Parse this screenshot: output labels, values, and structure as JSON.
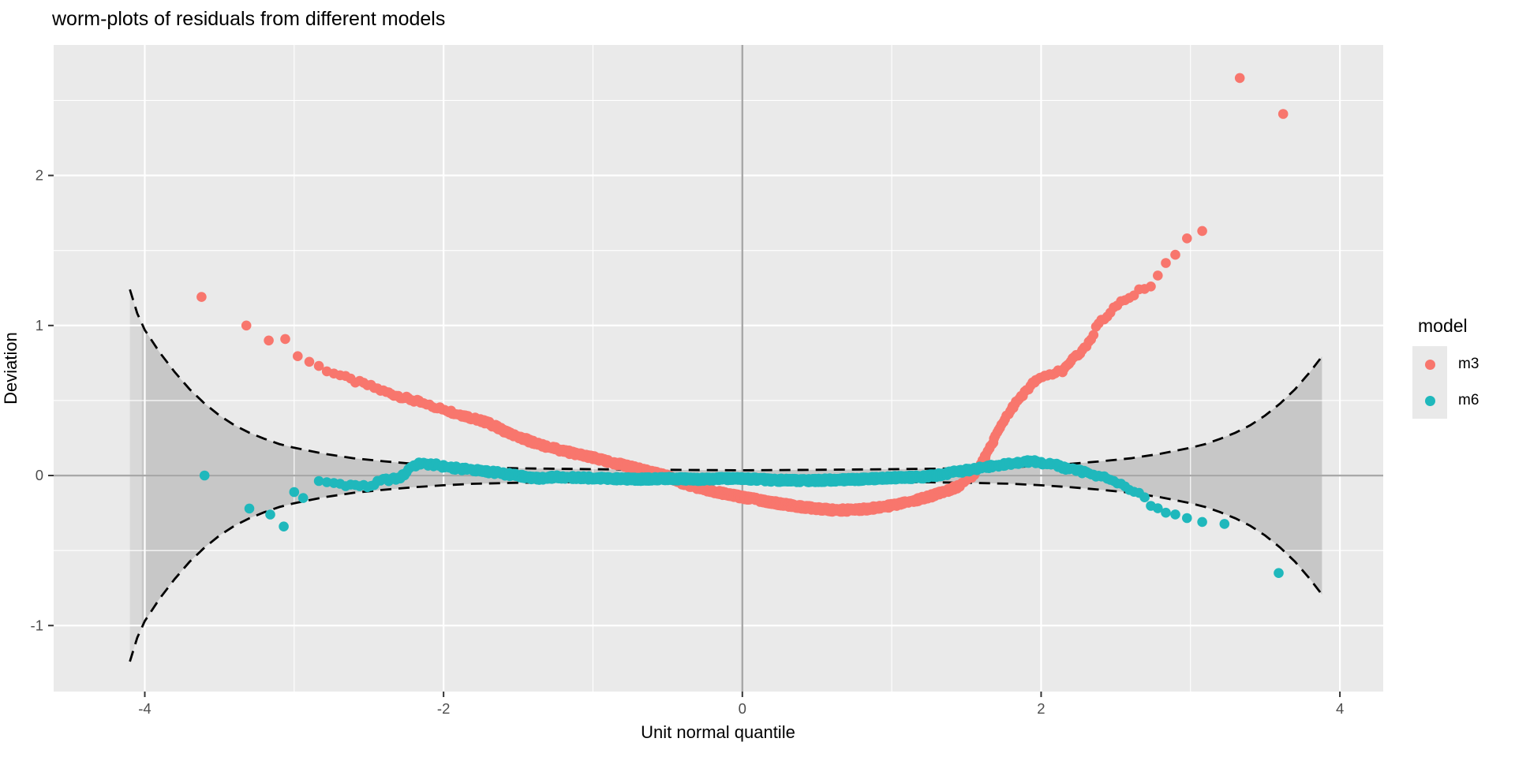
{
  "page": {
    "background": "#FFFFFF"
  },
  "chart_data": {
    "type": "scatter",
    "title": "worm-plots of residuals from different models",
    "xlabel": "Unit normal quantile",
    "ylabel": "Deviation",
    "x_range": [
      -4.61,
      4.29
    ],
    "y_range": [
      -1.44,
      2.87
    ],
    "x_ticks": [
      -4,
      -2,
      0,
      2,
      4
    ],
    "y_ticks": [
      -1,
      0,
      1,
      2
    ],
    "x_minor_ticks": [
      -3,
      -1,
      1,
      3
    ],
    "y_minor_ticks": [
      -0.5,
      0.5,
      1.5,
      2.5
    ],
    "panel_color": "#EAEAEA",
    "grid_major_color": "#FFFFFF",
    "grid_minor_color": "#FFFFFF",
    "reference_line_color": "#A8A8A8",
    "tick_label_color": "#4D4D4D",
    "confidence_band": {
      "style": "dashed",
      "line_color": "#000000",
      "fill": "rgba(0,0,0,0.075)",
      "dash_q_range": [
        -4.1,
        3.88
      ],
      "segments": [
        {
          "q_min": -4.1,
          "q_max": 3.88
        },
        {
          "q_min": -4.02,
          "q_max": 3.88
        }
      ],
      "upper": [
        [
          -4.1,
          1.24
        ],
        [
          -4.05,
          1.08
        ],
        [
          -4.0,
          0.97
        ],
        [
          -3.9,
          0.82
        ],
        [
          -3.8,
          0.69
        ],
        [
          -3.7,
          0.575
        ],
        [
          -3.6,
          0.48
        ],
        [
          -3.5,
          0.4
        ],
        [
          -3.4,
          0.335
        ],
        [
          -3.3,
          0.285
        ],
        [
          -3.2,
          0.245
        ],
        [
          -3.1,
          0.21
        ],
        [
          -3.0,
          0.185
        ],
        [
          -2.8,
          0.145
        ],
        [
          -2.6,
          0.115
        ],
        [
          -2.4,
          0.095
        ],
        [
          -2.2,
          0.078
        ],
        [
          -2.0,
          0.065
        ],
        [
          -1.8,
          0.055
        ],
        [
          -1.5,
          0.048
        ],
        [
          -1.0,
          0.042
        ],
        [
          -0.5,
          0.038
        ],
        [
          0,
          0.035
        ],
        [
          0.5,
          0.038
        ],
        [
          1.0,
          0.042
        ],
        [
          1.5,
          0.048
        ],
        [
          1.8,
          0.055
        ],
        [
          2.0,
          0.065
        ],
        [
          2.2,
          0.078
        ],
        [
          2.4,
          0.095
        ],
        [
          2.6,
          0.115
        ],
        [
          2.8,
          0.145
        ],
        [
          3.0,
          0.185
        ],
        [
          3.1,
          0.21
        ],
        [
          3.2,
          0.245
        ],
        [
          3.3,
          0.285
        ],
        [
          3.4,
          0.335
        ],
        [
          3.5,
          0.4
        ],
        [
          3.6,
          0.48
        ],
        [
          3.7,
          0.575
        ],
        [
          3.8,
          0.69
        ],
        [
          3.9,
          0.82
        ],
        [
          4.0,
          0.97
        ],
        [
          4.05,
          1.08
        ],
        [
          4.1,
          1.24
        ]
      ]
    },
    "legend": {
      "title": "model",
      "position": "right",
      "entries": [
        {
          "label": "m3",
          "color": "#F8766D"
        },
        {
          "label": "m6",
          "color": "#1FB8BC"
        }
      ]
    },
    "series": [
      {
        "name": "m3",
        "color": "#F8766D",
        "point_radius": 6.3,
        "n_points_est": 2400,
        "dense_q_range": [
          -2.98,
          3.19
        ],
        "curve": [
          [
            -2.98,
            0.8
          ],
          [
            -2.9,
            0.76
          ],
          [
            -2.8,
            0.71
          ],
          [
            -2.7,
            0.67
          ],
          [
            -2.6,
            0.63
          ],
          [
            -2.5,
            0.6
          ],
          [
            -2.4,
            0.56
          ],
          [
            -2.3,
            0.53
          ],
          [
            -2.2,
            0.5
          ],
          [
            -2.1,
            0.47
          ],
          [
            -2.0,
            0.44
          ],
          [
            -1.9,
            0.41
          ],
          [
            -1.8,
            0.38
          ],
          [
            -1.7,
            0.35
          ],
          [
            -1.6,
            0.3
          ],
          [
            -1.5,
            0.26
          ],
          [
            -1.4,
            0.22
          ],
          [
            -1.3,
            0.19
          ],
          [
            -1.2,
            0.165
          ],
          [
            -1.1,
            0.14
          ],
          [
            -1.0,
            0.12
          ],
          [
            -0.9,
            0.095
          ],
          [
            -0.8,
            0.07
          ],
          [
            -0.7,
            0.045
          ],
          [
            -0.6,
            0.02
          ],
          [
            -0.5,
            -0.005
          ],
          [
            -0.4,
            -0.05
          ],
          [
            -0.3,
            -0.08
          ],
          [
            -0.2,
            -0.105
          ],
          [
            -0.1,
            -0.125
          ],
          [
            0,
            -0.145
          ],
          [
            0.1,
            -0.16
          ],
          [
            0.2,
            -0.18
          ],
          [
            0.3,
            -0.195
          ],
          [
            0.4,
            -0.21
          ],
          [
            0.5,
            -0.22
          ],
          [
            0.6,
            -0.23
          ],
          [
            0.7,
            -0.23
          ],
          [
            0.8,
            -0.225
          ],
          [
            0.9,
            -0.215
          ],
          [
            1.0,
            -0.2
          ],
          [
            1.1,
            -0.18
          ],
          [
            1.2,
            -0.155
          ],
          [
            1.3,
            -0.125
          ],
          [
            1.4,
            -0.09
          ],
          [
            1.45,
            -0.07
          ],
          [
            1.5,
            -0.04
          ],
          [
            1.55,
            0.01
          ],
          [
            1.6,
            0.08
          ],
          [
            1.65,
            0.17
          ],
          [
            1.7,
            0.27
          ],
          [
            1.75,
            0.36
          ],
          [
            1.8,
            0.44
          ],
          [
            1.85,
            0.51
          ],
          [
            1.9,
            0.56
          ],
          [
            1.95,
            0.62
          ],
          [
            2.0,
            0.65
          ],
          [
            2.05,
            0.67
          ],
          [
            2.1,
            0.69
          ],
          [
            2.15,
            0.7
          ],
          [
            2.2,
            0.76
          ],
          [
            2.25,
            0.81
          ],
          [
            2.3,
            0.86
          ],
          [
            2.34,
            0.91
          ],
          [
            2.37,
            1.0
          ],
          [
            2.41,
            1.04
          ],
          [
            2.45,
            1.07
          ],
          [
            2.5,
            1.13
          ],
          [
            2.55,
            1.16
          ],
          [
            2.6,
            1.19
          ],
          [
            2.65,
            1.23
          ],
          [
            2.7,
            1.24
          ],
          [
            2.76,
            1.29
          ],
          [
            2.81,
            1.4
          ],
          [
            2.86,
            1.43
          ],
          [
            2.92,
            1.5
          ],
          [
            2.97,
            1.57
          ],
          [
            3.02,
            1.63
          ],
          [
            3.06,
            1.65
          ],
          [
            3.1,
            1.61
          ],
          [
            3.15,
            1.55
          ],
          [
            3.19,
            1.52
          ]
        ],
        "outliers": [
          [
            -3.62,
            1.19
          ],
          [
            -3.32,
            1.0
          ],
          [
            -3.17,
            0.9
          ],
          [
            -3.06,
            0.91
          ],
          [
            3.33,
            2.65
          ],
          [
            3.62,
            2.41
          ]
        ]
      },
      {
        "name": "m6",
        "color": "#1FB8BC",
        "point_radius": 6.3,
        "n_points_est": 2400,
        "dense_q_range": [
          -2.88,
          3.32
        ],
        "curve": [
          [
            -2.88,
            -0.05
          ],
          [
            -2.82,
            -0.04
          ],
          [
            -2.7,
            -0.055
          ],
          [
            -2.6,
            -0.065
          ],
          [
            -2.5,
            -0.075
          ],
          [
            -2.45,
            -0.05
          ],
          [
            -2.4,
            -0.03
          ],
          [
            -2.3,
            -0.02
          ],
          [
            -2.26,
            0.01
          ],
          [
            -2.22,
            0.06
          ],
          [
            -2.15,
            0.08
          ],
          [
            -2.05,
            0.07
          ],
          [
            -1.95,
            0.05
          ],
          [
            -1.85,
            0.045
          ],
          [
            -1.75,
            0.03
          ],
          [
            -1.65,
            0.02
          ],
          [
            -1.55,
            0.005
          ],
          [
            -1.45,
            -0.01
          ],
          [
            -1.35,
            -0.02
          ],
          [
            -1.25,
            -0.01
          ],
          [
            -1.1,
            -0.015
          ],
          [
            -0.9,
            -0.02
          ],
          [
            -0.7,
            -0.025
          ],
          [
            -0.5,
            -0.02
          ],
          [
            -0.3,
            -0.025
          ],
          [
            -0.1,
            -0.02
          ],
          [
            0,
            -0.02
          ],
          [
            0.2,
            -0.03
          ],
          [
            0.4,
            -0.035
          ],
          [
            0.6,
            -0.03
          ],
          [
            0.8,
            -0.025
          ],
          [
            1.0,
            -0.015
          ],
          [
            1.2,
            -0.01
          ],
          [
            1.3,
            0.0
          ],
          [
            1.4,
            0.02
          ],
          [
            1.6,
            0.05
          ],
          [
            1.8,
            0.08
          ],
          [
            1.93,
            0.095
          ],
          [
            2.0,
            0.085
          ],
          [
            2.07,
            0.08
          ],
          [
            2.16,
            0.05
          ],
          [
            2.25,
            0.03
          ],
          [
            2.33,
            0.015
          ],
          [
            2.42,
            -0.01
          ],
          [
            2.51,
            -0.05
          ],
          [
            2.56,
            -0.07
          ],
          [
            2.65,
            -0.12
          ],
          [
            2.7,
            -0.16
          ],
          [
            2.75,
            -0.21
          ],
          [
            2.8,
            -0.22
          ],
          [
            2.85,
            -0.25
          ],
          [
            2.9,
            -0.27
          ],
          [
            2.95,
            -0.26
          ],
          [
            3.0,
            -0.29
          ],
          [
            3.05,
            -0.34
          ],
          [
            3.1,
            -0.3
          ],
          [
            3.16,
            -0.31
          ],
          [
            3.24,
            -0.32
          ],
          [
            3.32,
            -0.35
          ]
        ],
        "outliers": [
          [
            -3.6,
            0.0
          ],
          [
            -3.3,
            -0.22
          ],
          [
            -3.16,
            -0.26
          ],
          [
            -3.07,
            -0.34
          ],
          [
            -3.0,
            -0.11
          ],
          [
            -2.94,
            -0.15
          ],
          [
            3.59,
            -0.65
          ]
        ]
      }
    ]
  }
}
